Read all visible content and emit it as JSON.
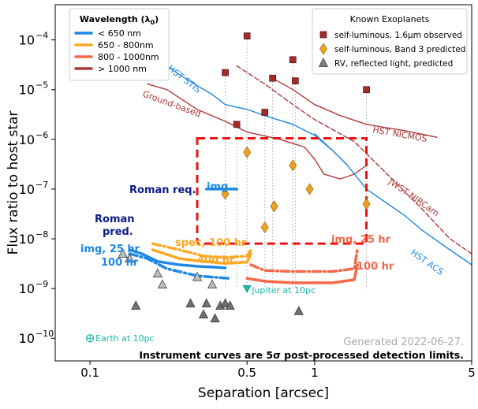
{
  "chart_data": {
    "type": "line",
    "xlabel": "Separation [arcsec]",
    "ylabel": "Flux ratio to host star",
    "xscale": "log",
    "yscale": "log",
    "xlim": [
      0.07,
      5
    ],
    "ylim": [
      3.5e-11,
      0.00051
    ],
    "x_ticks": [
      {
        "value": 0.1,
        "label": "0.1"
      },
      {
        "value": 0.5,
        "label": "0.5"
      },
      {
        "value": 1,
        "label": "1"
      },
      {
        "value": 5,
        "label": "5"
      }
    ],
    "y_ticks": [
      {
        "value": 1e-10,
        "label": "10",
        "exp": "−10"
      },
      {
        "value": 1e-09,
        "label": "10",
        "exp": "−9"
      },
      {
        "value": 1e-08,
        "label": "10",
        "exp": "−8"
      },
      {
        "value": 1e-07,
        "label": "10",
        "exp": "−7"
      },
      {
        "value": 1e-06,
        "label": "10",
        "exp": "−6"
      },
      {
        "value": 1e-05,
        "label": "10",
        "exp": "−5"
      },
      {
        "value": 0.0001,
        "label": "10",
        "exp": "−4"
      }
    ],
    "wavelength_legend": {
      "title": "Wavelength (λ",
      "title_sub": "0",
      "title_end": ")",
      "entries": [
        {
          "label": "< 650 nm",
          "color": "#1e88e5"
        },
        {
          "label": "650 - 800nm",
          "color": "#ffa726"
        },
        {
          "label": "800 - 1000nm",
          "color": "#f4694a"
        },
        {
          "label": "> 1000 nm",
          "color": "#b03a3a"
        }
      ]
    },
    "exoplanet_legend": {
      "title": "Known Exoplanets",
      "entries": [
        {
          "label": "self-luminous, 1.6μm observed",
          "marker": "square",
          "color": "#a52a2a"
        },
        {
          "label": "self-luminous, Band 3 predicted",
          "marker": "diamond",
          "color": "#f0a020"
        },
        {
          "label": "RV, reflected light, predicted",
          "marker": "triangle",
          "color": "#808080"
        }
      ]
    },
    "curves": [
      {
        "label": "HST STIS",
        "color": "#1e88e5",
        "dash": "solid",
        "points": [
          [
            0.2,
            4e-05
          ],
          [
            0.25,
            2e-05
          ],
          [
            0.3,
            1.2e-05
          ],
          [
            0.35,
            8e-06
          ],
          [
            0.4,
            5e-06
          ],
          [
            0.5,
            4e-06
          ],
          [
            0.6,
            3e-06
          ],
          [
            0.8,
            2e-06
          ],
          [
            1,
            1.2e-06
          ],
          [
            1.2,
            6e-07
          ],
          [
            1.4,
            3e-07
          ]
        ]
      },
      {
        "label": "Ground-based",
        "color": "#b03a3a",
        "dash": "solid",
        "points": [
          [
            0.18,
            1.3e-05
          ],
          [
            0.22,
            1e-05
          ],
          [
            0.3,
            4e-06
          ],
          [
            0.4,
            2.3e-06
          ],
          [
            0.5,
            1.4e-06
          ],
          [
            0.7,
            1e-06
          ],
          [
            0.9,
            7e-07
          ],
          [
            1,
            4e-07
          ],
          [
            1.1,
            2e-07
          ],
          [
            1.3,
            1.6e-07
          ],
          [
            1.5,
            2e-07
          ],
          [
            1.7,
            3e-07
          ]
        ]
      },
      {
        "label": "HST NICMOS",
        "color": "#b03a3a",
        "dash": "solid",
        "points": [
          [
            0.65,
            1.7e-05
          ],
          [
            0.8,
            1e-05
          ],
          [
            1,
            5e-06
          ],
          [
            1.3,
            3e-06
          ],
          [
            1.7,
            2e-06
          ],
          [
            2.5,
            1.5e-06
          ],
          [
            3.5,
            1.1e-06
          ]
        ]
      },
      {
        "label": "JWST NIRCam",
        "color": "#b03a3a",
        "dash": "dashed",
        "points": [
          [
            0.45,
            3e-05
          ],
          [
            0.6,
            1.3e-05
          ],
          [
            0.8,
            5e-06
          ],
          [
            1,
            2.5e-06
          ],
          [
            1.5,
            9e-07
          ],
          [
            2,
            2.5e-07
          ],
          [
            3,
            4e-08
          ],
          [
            4,
            1e-08
          ],
          [
            5,
            5e-09
          ]
        ]
      },
      {
        "label": "HST ACS",
        "color": "#1e88e5",
        "dash": "solid",
        "points": [
          [
            1,
            1.3e-06
          ],
          [
            1.2,
            6e-07
          ],
          [
            1.4,
            3e-07
          ],
          [
            1.7,
            1e-07
          ],
          [
            2,
            6e-08
          ],
          [
            2.5,
            3e-08
          ],
          [
            3,
            1.5e-08
          ],
          [
            4,
            6e-09
          ],
          [
            5,
            3e-09
          ]
        ]
      },
      {
        "label": "Roman req.",
        "color": "#1e88e5",
        "dash": "solid",
        "points": [
          [
            0.33,
            1e-07
          ],
          [
            0.45,
            1e-07
          ]
        ]
      },
      {
        "label": "img, 25 hr / 100 hr (Band 1)",
        "color": "#1e88e5",
        "dash": "solid",
        "points": [
          [
            0.15,
            6e-09
          ],
          [
            0.17,
            5e-09
          ],
          [
            0.2,
            3.5e-09
          ],
          [
            0.25,
            3e-09
          ],
          [
            0.3,
            2.8e-09
          ],
          [
            0.35,
            2.7e-09
          ],
          [
            0.4,
            2.6e-09
          ]
        ]
      },
      {
        "label": "img, 25 hr / 100 hr (Band 1, 100 hr)",
        "color": "#1e88e5",
        "dash": "dashdot",
        "points": [
          [
            0.15,
            5e-09
          ],
          [
            0.18,
            4e-09
          ],
          [
            0.22,
            2.5e-09
          ],
          [
            0.3,
            1.8e-09
          ],
          [
            0.35,
            1.7e-09
          ],
          [
            0.42,
            1.6e-09
          ]
        ]
      },
      {
        "label": "spec, 100 hr (Band 3)",
        "color": "#ffa726",
        "dash": "solid",
        "points": [
          [
            0.19,
            6e-09
          ],
          [
            0.25,
            4e-09
          ],
          [
            0.32,
            3.5e-09
          ],
          [
            0.4,
            3.2e-09
          ],
          [
            0.5,
            3.4e-09
          ],
          [
            0.52,
            5e-09
          ]
        ]
      },
      {
        "label": "400 hr (Band 3)",
        "color": "#ffa726",
        "dash": "dashdot",
        "points": [
          [
            0.19,
            8e-09
          ],
          [
            0.25,
            6e-09
          ],
          [
            0.32,
            4.5e-09
          ],
          [
            0.4,
            4.2e-09
          ],
          [
            0.5,
            4.5e-09
          ],
          [
            0.52,
            6e-09
          ]
        ]
      },
      {
        "label": "img, 25 hr (Band 4)",
        "color": "#f4694a",
        "dash": "dashdot",
        "points": [
          [
            0.52,
            3e-09
          ],
          [
            0.6,
            2.3e-09
          ],
          [
            0.8,
            2.2e-09
          ],
          [
            1.2,
            2.2e-09
          ],
          [
            1.5,
            2.5e-09
          ],
          [
            1.55,
            6e-09
          ]
        ]
      },
      {
        "label": "100 hr (Band 4)",
        "color": "#f4694a",
        "dash": "solid",
        "points": [
          [
            0.5,
            1.6e-09
          ],
          [
            0.6,
            1.4e-09
          ],
          [
            0.8,
            1.3e-09
          ],
          [
            1.2,
            1.3e-09
          ],
          [
            1.5,
            1.5e-09
          ],
          [
            1.55,
            3e-09
          ]
        ]
      }
    ],
    "box": {
      "x": [
        0.3,
        1.7
      ],
      "y": [
        8e-09,
        1.05e-06
      ],
      "color": "#ee1111"
    },
    "planets": {
      "self_luminous_observed": [
        [
          0.4,
          2.2e-05
        ],
        [
          0.45,
          2e-06
        ],
        [
          0.5,
          0.00012
        ],
        [
          0.6,
          3.5e-06
        ],
        [
          0.65,
          1.7e-05
        ],
        [
          0.8,
          4e-05
        ],
        [
          0.82,
          1.5e-05
        ],
        [
          1.7,
          1e-05
        ]
      ],
      "self_luminous_band3": [
        [
          0.4,
          8e-08
        ],
        [
          0.5,
          5.5e-07
        ],
        [
          0.6,
          1.7e-08
        ],
        [
          0.66,
          4.5e-08
        ],
        [
          0.8,
          3e-07
        ],
        [
          0.95,
          1e-07
        ],
        [
          1.7,
          5e-08
        ]
      ],
      "rv_reflected": [
        [
          0.14,
          5e-09
        ],
        [
          0.15,
          4e-09
        ],
        [
          0.2,
          2e-09
        ],
        [
          0.21,
          1.2e-09
        ],
        [
          0.3,
          1.7e-09
        ],
        [
          0.35,
          1.2e-09
        ],
        [
          0.28,
          5e-10
        ],
        [
          0.16,
          4.5e-10
        ],
        [
          0.33,
          5e-10
        ],
        [
          0.32,
          3e-10
        ],
        [
          0.38,
          4.5e-10
        ],
        [
          0.4,
          5e-10
        ],
        [
          0.36,
          2.5e-10
        ],
        [
          0.42,
          4.5e-10
        ],
        [
          0.85,
          3.5e-10
        ]
      ]
    },
    "jupiter": {
      "x": 0.5,
      "y": 1e-09,
      "label": "Jupiter at 10pc"
    },
    "earth": {
      "x": 0.1,
      "y": 1e-10,
      "label": "Earth at 10pc"
    },
    "annotations": [
      {
        "text": "HST STIS",
        "color": "#1e88e5"
      },
      {
        "text": "Ground-based",
        "color": "#b03a3a"
      },
      {
        "text": "HST NICMOS",
        "color": "#b03a3a"
      },
      {
        "text": "JWST NIRCam",
        "color": "#b03a3a"
      },
      {
        "text": "HST ACS",
        "color": "#1e88e5"
      },
      {
        "text": "Roman req.",
        "color": "#0d1b8a"
      },
      {
        "text": "img",
        "color": "#1e88e5"
      },
      {
        "text": "Roman",
        "color": "#0d1b8a"
      },
      {
        "text": "pred.",
        "color": "#0d1b8a"
      },
      {
        "text": "img, 25 hr",
        "color": "#1e88e5"
      },
      {
        "text": "100 hr",
        "color": "#1e88e5"
      },
      {
        "text": "spec, 100 hr",
        "color": "#ffa726"
      },
      {
        "text": "400 hr",
        "color": "#ffa726"
      },
      {
        "text": "img, 25 hr",
        "color": "#f4694a"
      },
      {
        "text": "100 hr",
        "color": "#f4694a"
      }
    ],
    "generated": "Generated 2022-06-27.",
    "footnote": "Instrument curves are 5σ post-processed detection limits."
  }
}
